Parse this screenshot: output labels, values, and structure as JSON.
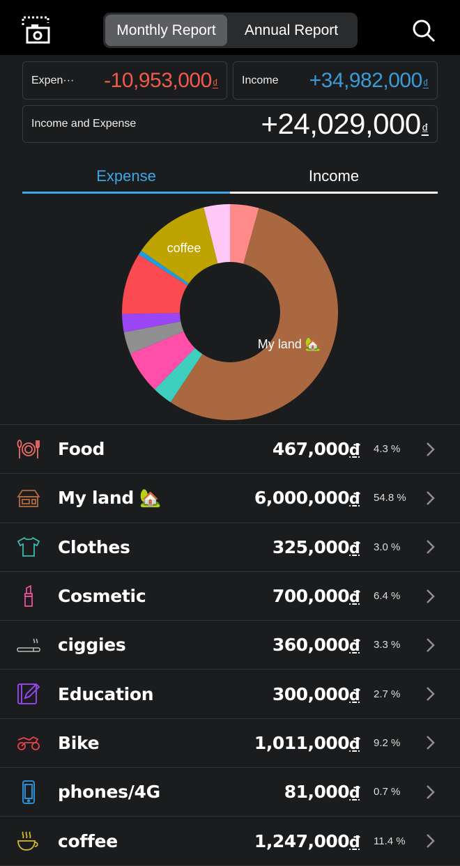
{
  "header": {
    "tabs": [
      {
        "label": "Monthly Report",
        "active": true
      },
      {
        "label": "Annual Report",
        "active": false
      }
    ],
    "left_icon": "screenshot-camera-icon",
    "right_icon": "search-icon"
  },
  "summary": {
    "expense_label": "Expen···",
    "expense_value": "-10,953,000",
    "income_label": "Income",
    "income_value": "+34,982,000",
    "net_label": "Income and Expense",
    "net_value": "+24,029,000",
    "currency": "₫",
    "expense_color": "#ef5b49",
    "income_color": "#3a9bd6"
  },
  "type_tabs": {
    "expense": "Expense",
    "income": "Income",
    "active": "expense"
  },
  "chart_data": {
    "type": "pie",
    "donut": true,
    "slices": [
      {
        "name": "Food",
        "value": 4.3,
        "color": "#ff8a8a"
      },
      {
        "name": "My land 🏡",
        "value": 54.8,
        "color": "#a9683f",
        "label": "My land 🏡"
      },
      {
        "name": "Clothes",
        "value": 3.0,
        "color": "#3fcfbf"
      },
      {
        "name": "Cosmetic",
        "value": 6.4,
        "color": "#ff4fa8"
      },
      {
        "name": "ciggies",
        "value": 3.3,
        "color": "#8f8f8f"
      },
      {
        "name": "Education",
        "value": 2.7,
        "color": "#9a46f5"
      },
      {
        "name": "Bike",
        "value": 9.2,
        "color": "#fb4a50"
      },
      {
        "name": "phones/4G",
        "value": 0.7,
        "color": "#1f9be0"
      },
      {
        "name": "coffee",
        "value": 11.4,
        "color": "#bfa300",
        "label": "coffee"
      },
      {
        "name": "",
        "value": 3.9,
        "color": "#ffc8f7"
      }
    ]
  },
  "categories": [
    {
      "name": "Food",
      "amount": "467,000",
      "percent": "4.3 %",
      "icon": "fork-plate-knife-icon",
      "color": "#ee6b66"
    },
    {
      "name": "My land 🏡",
      "amount": "6,000,000",
      "percent": "54.8 %",
      "icon": "house-icon",
      "color": "#b26a3d"
    },
    {
      "name": "Clothes",
      "amount": "325,000",
      "percent": "3.0 %",
      "icon": "tshirt-icon",
      "color": "#35bdb0"
    },
    {
      "name": "Cosmetic",
      "amount": "700,000",
      "percent": "6.4 %",
      "icon": "lipstick-icon",
      "color": "#e9519a"
    },
    {
      "name": "ciggies",
      "amount": "360,000",
      "percent": "3.3 %",
      "icon": "cigarette-icon",
      "color": "#bbbbbb"
    },
    {
      "name": "Education",
      "amount": "300,000",
      "percent": "2.7 %",
      "icon": "notebook-pen-icon",
      "color": "#9146e8"
    },
    {
      "name": "Bike",
      "amount": "1,011,000",
      "percent": "9.2 %",
      "icon": "motorbike-icon",
      "color": "#e9414a"
    },
    {
      "name": "phones/4G",
      "amount": "81,000",
      "percent": "0.7 %",
      "icon": "smartphone-icon",
      "color": "#2a90d6"
    },
    {
      "name": "coffee",
      "amount": "1,247,000",
      "percent": "11.4 %",
      "icon": "coffee-cup-icon",
      "color": "#d9b832"
    }
  ],
  "currency": "₫"
}
